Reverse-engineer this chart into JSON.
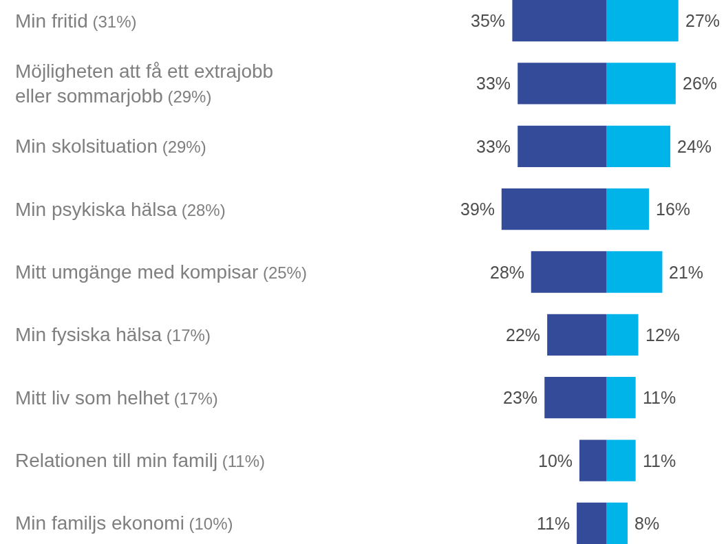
{
  "chart_data": [
    {
      "type": "bar",
      "orientation": "horizontal",
      "tick_labels": "y",
      "categories": [
        "Min fritid (31%)",
        "Möjligheten att få ett extrajobb eller sommarjobb (29%)",
        "Min skolsituation (29%)",
        "Min psykiska hälsa (28%)",
        "Mitt umgänge med kompisar (25%)",
        "Min fysiska hälsa (17%)",
        "Mitt liv som helhet (17%)",
        "Relationen till min familj (11%)",
        "Min familjs ekonomi (10%)"
      ],
      "series": [
        {
          "color": "#344b99",
          "values": [
            35,
            33,
            33,
            39,
            28,
            22,
            23,
            10,
            11
          ],
          "value_labels": [
            "35%",
            "33%",
            "33%",
            "39%",
            "28%",
            "22%",
            "23%",
            "10%",
            "11%"
          ]
        }
      ]
    },
    {
      "type": "bar",
      "orientation": "horizontal",
      "categories": [
        null,
        null,
        null,
        null,
        null,
        null,
        null,
        null,
        null
      ],
      "series": [
        {
          "color": "#00b4ea",
          "values": [
            27,
            26,
            24,
            16,
            21,
            12,
            11,
            11,
            8
          ],
          "value_labels": [
            "27%",
            "26%",
            "24%",
            "16%",
            "21%",
            "12%",
            "11%",
            "11%",
            "8%"
          ]
        }
      ]
    }
  ]
}
